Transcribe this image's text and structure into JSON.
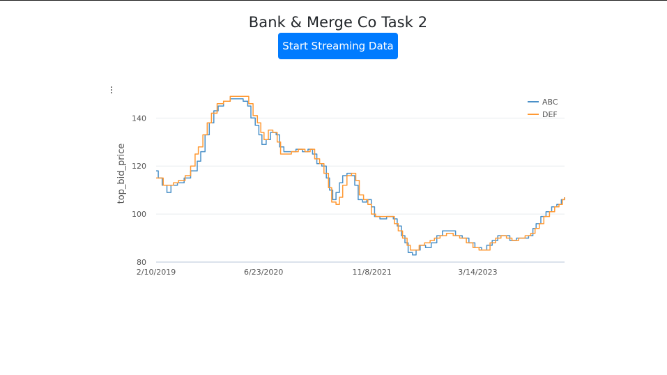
{
  "page": {
    "title": "Bank & Merge Co Task 2",
    "stream_button_label": "Start Streaming Data"
  },
  "chart_menu": {
    "icon": "kebab-menu-icon"
  },
  "colors": {
    "button_bg": "#007bff",
    "series_abc": "#4a90c8",
    "series_def": "#ff9933",
    "grid": "#e8ecef",
    "axis": "#cfd8e6"
  },
  "chart_data": {
    "type": "line",
    "title": "",
    "ylabel": "top_bid_price",
    "xlabel": "",
    "x_tick_labels": [
      "2/10/2019",
      "6/23/2020",
      "11/8/2021",
      "3/14/2023"
    ],
    "y_ticks": [
      80,
      100,
      120,
      140
    ],
    "ylim": [
      80,
      152
    ],
    "x_domain": [
      "2019-02-10",
      "2024-04-20"
    ],
    "legend": {
      "position": "top-right",
      "entries": [
        "ABC",
        "DEF"
      ]
    },
    "grid": true,
    "series": [
      {
        "name": "ABC",
        "points": [
          [
            "2019-02-10",
            118
          ],
          [
            "2019-02-20",
            115
          ],
          [
            "2019-03-10",
            112
          ],
          [
            "2019-04-01",
            109
          ],
          [
            "2019-04-20",
            112
          ],
          [
            "2019-05-20",
            113
          ],
          [
            "2019-06-20",
            115
          ],
          [
            "2019-07-20",
            118
          ],
          [
            "2019-08-20",
            122
          ],
          [
            "2019-09-05",
            126
          ],
          [
            "2019-09-25",
            133
          ],
          [
            "2019-10-15",
            138
          ],
          [
            "2019-11-05",
            143
          ],
          [
            "2019-11-25",
            145
          ],
          [
            "2019-12-20",
            147
          ],
          [
            "2020-01-20",
            148
          ],
          [
            "2020-02-20",
            148
          ],
          [
            "2020-03-20",
            147
          ],
          [
            "2020-04-10",
            145
          ],
          [
            "2020-04-25",
            140
          ],
          [
            "2020-05-15",
            137
          ],
          [
            "2020-06-01",
            133
          ],
          [
            "2020-06-15",
            129
          ],
          [
            "2020-07-05",
            131
          ],
          [
            "2020-07-25",
            134
          ],
          [
            "2020-08-20",
            133
          ],
          [
            "2020-09-05",
            128
          ],
          [
            "2020-09-25",
            126
          ],
          [
            "2020-10-20",
            126
          ],
          [
            "2020-11-20",
            127
          ],
          [
            "2020-12-20",
            126
          ],
          [
            "2021-01-15",
            127
          ],
          [
            "2021-02-05",
            125
          ],
          [
            "2021-02-25",
            121
          ],
          [
            "2021-03-20",
            120
          ],
          [
            "2021-04-10",
            115
          ],
          [
            "2021-04-25",
            110
          ],
          [
            "2021-05-10",
            106
          ],
          [
            "2021-05-25",
            109
          ],
          [
            "2021-06-10",
            113
          ],
          [
            "2021-06-25",
            116
          ],
          [
            "2021-07-15",
            117
          ],
          [
            "2021-08-05",
            116
          ],
          [
            "2021-08-20",
            112
          ],
          [
            "2021-09-05",
            106
          ],
          [
            "2021-09-25",
            105
          ],
          [
            "2021-10-15",
            106
          ],
          [
            "2021-11-05",
            103
          ],
          [
            "2021-11-20",
            99
          ],
          [
            "2021-12-15",
            98
          ],
          [
            "2022-01-15",
            99
          ],
          [
            "2022-02-15",
            98
          ],
          [
            "2022-03-05",
            95
          ],
          [
            "2022-03-25",
            91
          ],
          [
            "2022-04-10",
            88
          ],
          [
            "2022-04-25",
            84
          ],
          [
            "2022-05-15",
            83
          ],
          [
            "2022-06-01",
            85
          ],
          [
            "2022-06-20",
            87
          ],
          [
            "2022-07-15",
            86
          ],
          [
            "2022-08-10",
            88
          ],
          [
            "2022-09-05",
            91
          ],
          [
            "2022-10-01",
            93
          ],
          [
            "2022-11-01",
            93
          ],
          [
            "2022-12-01",
            91
          ],
          [
            "2023-01-01",
            90
          ],
          [
            "2023-02-01",
            88
          ],
          [
            "2023-03-01",
            86
          ],
          [
            "2023-04-01",
            85
          ],
          [
            "2023-04-25",
            87
          ],
          [
            "2023-05-20",
            89
          ],
          [
            "2023-06-15",
            91
          ],
          [
            "2023-07-15",
            91
          ],
          [
            "2023-08-10",
            89
          ],
          [
            "2023-09-10",
            90
          ],
          [
            "2023-10-10",
            90
          ],
          [
            "2023-11-05",
            91
          ],
          [
            "2023-11-25",
            94
          ],
          [
            "2023-12-10",
            96
          ],
          [
            "2024-01-01",
            99
          ],
          [
            "2024-01-25",
            101
          ],
          [
            "2024-02-20",
            103
          ],
          [
            "2024-03-15",
            104
          ],
          [
            "2024-04-05",
            106
          ],
          [
            "2024-04-20",
            107
          ]
        ]
      },
      {
        "name": "DEF",
        "points": [
          [
            "2019-02-10",
            115
          ],
          [
            "2019-02-25",
            115
          ],
          [
            "2019-03-15",
            112
          ],
          [
            "2019-04-10",
            112
          ],
          [
            "2019-05-01",
            113
          ],
          [
            "2019-05-25",
            114
          ],
          [
            "2019-06-25",
            116
          ],
          [
            "2019-07-20",
            120
          ],
          [
            "2019-08-10",
            125
          ],
          [
            "2019-08-25",
            128
          ],
          [
            "2019-09-15",
            133
          ],
          [
            "2019-10-05",
            138
          ],
          [
            "2019-10-25",
            142
          ],
          [
            "2019-11-20",
            146
          ],
          [
            "2019-12-20",
            147
          ],
          [
            "2020-01-20",
            149
          ],
          [
            "2020-02-20",
            149
          ],
          [
            "2020-03-20",
            149
          ],
          [
            "2020-04-15",
            146
          ],
          [
            "2020-05-05",
            141
          ],
          [
            "2020-05-25",
            138
          ],
          [
            "2020-06-10",
            134
          ],
          [
            "2020-06-25",
            131
          ],
          [
            "2020-07-15",
            135
          ],
          [
            "2020-08-05",
            134
          ],
          [
            "2020-08-25",
            130
          ],
          [
            "2020-09-10",
            125
          ],
          [
            "2020-10-05",
            125
          ],
          [
            "2020-10-30",
            126
          ],
          [
            "2020-12-01",
            127
          ],
          [
            "2021-01-01",
            126
          ],
          [
            "2021-01-25",
            127
          ],
          [
            "2021-02-15",
            123
          ],
          [
            "2021-03-10",
            121
          ],
          [
            "2021-03-30",
            117
          ],
          [
            "2021-04-20",
            111
          ],
          [
            "2021-05-05",
            105
          ],
          [
            "2021-05-25",
            104
          ],
          [
            "2021-06-10",
            107
          ],
          [
            "2021-06-25",
            112
          ],
          [
            "2021-07-15",
            116
          ],
          [
            "2021-08-05",
            117
          ],
          [
            "2021-08-25",
            114
          ],
          [
            "2021-09-10",
            108
          ],
          [
            "2021-09-30",
            106
          ],
          [
            "2021-10-20",
            104
          ],
          [
            "2021-11-05",
            100
          ],
          [
            "2021-11-25",
            99
          ],
          [
            "2021-12-20",
            99
          ],
          [
            "2022-01-20",
            99
          ],
          [
            "2022-02-20",
            96
          ],
          [
            "2022-03-10",
            93
          ],
          [
            "2022-03-30",
            90
          ],
          [
            "2022-04-20",
            87
          ],
          [
            "2022-05-05",
            85
          ],
          [
            "2022-05-25",
            85
          ],
          [
            "2022-06-15",
            87
          ],
          [
            "2022-07-10",
            88
          ],
          [
            "2022-08-05",
            89
          ],
          [
            "2022-08-25",
            90
          ],
          [
            "2022-09-20",
            91
          ],
          [
            "2022-10-20",
            92
          ],
          [
            "2022-11-20",
            91
          ],
          [
            "2022-12-20",
            90
          ],
          [
            "2023-01-20",
            88
          ],
          [
            "2023-02-20",
            86
          ],
          [
            "2023-03-20",
            85
          ],
          [
            "2023-04-15",
            85
          ],
          [
            "2023-05-10",
            88
          ],
          [
            "2023-06-05",
            90
          ],
          [
            "2023-06-30",
            91
          ],
          [
            "2023-07-25",
            90
          ],
          [
            "2023-08-20",
            89
          ],
          [
            "2023-09-20",
            90
          ],
          [
            "2023-10-20",
            91
          ],
          [
            "2023-11-15",
            92
          ],
          [
            "2023-12-05",
            94
          ],
          [
            "2023-12-25",
            96
          ],
          [
            "2024-01-15",
            99
          ],
          [
            "2024-02-10",
            101
          ],
          [
            "2024-03-05",
            103
          ],
          [
            "2024-03-25",
            104
          ],
          [
            "2024-04-10",
            106
          ],
          [
            "2024-04-20",
            107
          ]
        ]
      }
    ]
  }
}
